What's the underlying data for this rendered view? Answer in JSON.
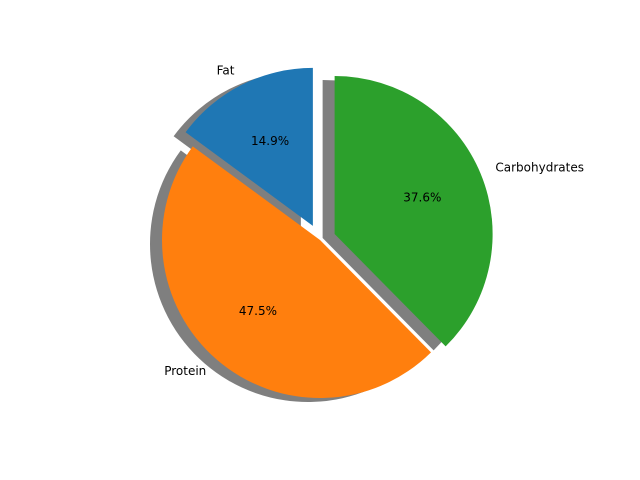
{
  "chart_data": {
    "type": "pie",
    "title": "",
    "categories": [
      "Fat",
      "Protein",
      "Carbohydrates"
    ],
    "values": [
      14.9,
      47.5,
      37.6
    ],
    "labels": [
      "Fat",
      "Protein",
      "Carbohydrates"
    ],
    "percent_labels": [
      "14.9%",
      "47.5%",
      "37.6%"
    ],
    "colors": [
      "#1f77b4",
      "#ff7f0e",
      "#2ca02c"
    ],
    "explode": [
      0.1,
      0,
      0.1
    ],
    "start_angle": 90,
    "shadow": true,
    "legend": "none"
  }
}
